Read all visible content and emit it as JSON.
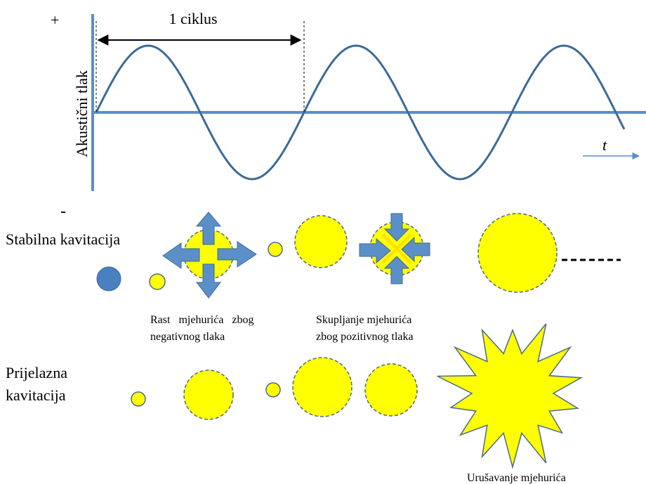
{
  "graph": {
    "plus_sign": "+",
    "minus_sign": "-",
    "y_axis_label": "Akustični tlak",
    "x_axis_label": "t",
    "cycle_label": "1 ciklus"
  },
  "rows": {
    "stable_label": "Stabilna kavitacija",
    "transient_label_line1": "Prijelazna",
    "transient_label_line2": "kavitacija"
  },
  "captions": {
    "growth_line1": "Rast   mjehurića   zbog",
    "growth_line2": "negativnog tlaka",
    "shrink_line1": "Skupljanje mjehurića",
    "shrink_line2": "zbog pozitivnog tlaka",
    "collapse": "Urušavanje mjehurića"
  },
  "colors": {
    "wave": "#3b6a9a",
    "axis": "#5b8fc7",
    "bubble_fill": "#ffff00",
    "bubble_stroke": "#4a6a8a",
    "arrow": "#5b8fc7",
    "seed_bubble": "#4a7fc0"
  }
}
